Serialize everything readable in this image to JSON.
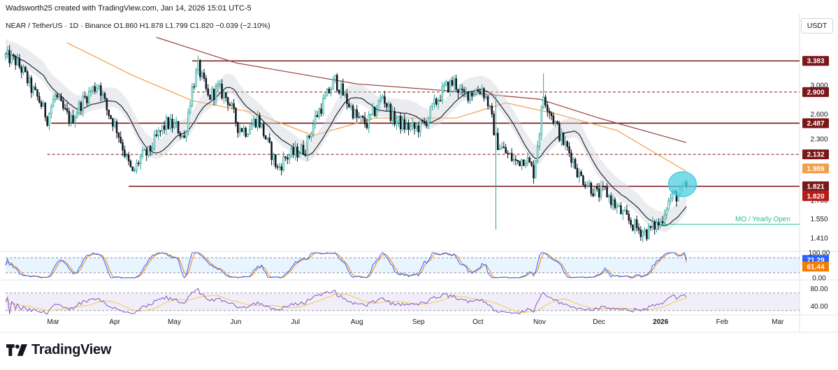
{
  "header": {
    "attribution": "Wadsworth25 created with TradingView.com, Jan 14, 2026 15:01 UTC-5",
    "symbol_line": "NEAR / TetherUS · 1D · Binance  O1.860  H1.878  L1.799  C1.820  −0.039 (−2.10%)"
  },
  "currency_label": "USDT",
  "branding": {
    "name": "TradingView",
    "logo_icon": "tradingview-logo-icon"
  },
  "colors": {
    "up": "#26a69a",
    "down": "#131722",
    "level": "#7b1619",
    "ma200": "#9c3c3c",
    "ma50": "#f0a04a",
    "sma20": "#131722",
    "band_fill": "#d1d4dc",
    "highlight": "#4dd0e1",
    "annotation": "#26c08a",
    "stoch_k": "#2962ff",
    "stoch_d": "#f57c00",
    "rsi": "#7e57c2",
    "rsi_ma": "#f0c850",
    "price_label": "#7b1619",
    "current_label": "#b71c1c"
  },
  "chart_data": [
    {
      "type": "candlestick",
      "title": "NEAR / TetherUS · 1D · Binance",
      "ohlc": {
        "open": 1.86,
        "high": 1.878,
        "low": 1.799,
        "close": 1.82,
        "change": -0.039,
        "change_pct": -2.1
      },
      "x_ticks": [
        "Mar",
        "Apr",
        "May",
        "Jun",
        "Jul",
        "Aug",
        "Sep",
        "Oct",
        "Nov",
        "Dec",
        "2026",
        "Feb",
        "Mar"
      ],
      "x_range": [
        "2025-02-05",
        "2026-03-12"
      ],
      "y_scale": "log",
      "y_range": [
        1.33,
        3.9
      ],
      "y_ticks": [
        3.0,
        2.6,
        2.3,
        1.7,
        1.55,
        1.41
      ],
      "grid": false,
      "series_close": [
        [
          "2025-02-05",
          3.46
        ],
        [
          "2025-02-10",
          3.38
        ],
        [
          "2025-02-14",
          3.2
        ],
        [
          "2025-02-18",
          2.95
        ],
        [
          "2025-02-22",
          2.78
        ],
        [
          "2025-02-26",
          2.55
        ],
        [
          "2025-03-02",
          2.85
        ],
        [
          "2025-03-06",
          2.65
        ],
        [
          "2025-03-10",
          2.52
        ],
        [
          "2025-03-15",
          2.74
        ],
        [
          "2025-03-20",
          2.92
        ],
        [
          "2025-03-24",
          3.02
        ],
        [
          "2025-03-28",
          2.66
        ],
        [
          "2025-04-02",
          2.42
        ],
        [
          "2025-04-07",
          2.08
        ],
        [
          "2025-04-10",
          1.93
        ],
        [
          "2025-04-14",
          2.1
        ],
        [
          "2025-04-18",
          2.15
        ],
        [
          "2025-04-23",
          2.35
        ],
        [
          "2025-04-27",
          2.48
        ],
        [
          "2025-05-02",
          2.45
        ],
        [
          "2025-05-06",
          2.3
        ],
        [
          "2025-05-10",
          2.95
        ],
        [
          "2025-05-13",
          3.28
        ],
        [
          "2025-05-18",
          2.82
        ],
        [
          "2025-05-23",
          2.95
        ],
        [
          "2025-05-28",
          2.8
        ],
        [
          "2025-06-02",
          2.45
        ],
        [
          "2025-06-06",
          2.4
        ],
        [
          "2025-06-12",
          2.55
        ],
        [
          "2025-06-17",
          2.25
        ],
        [
          "2025-06-22",
          1.98
        ],
        [
          "2025-06-26",
          2.1
        ],
        [
          "2025-07-01",
          2.15
        ],
        [
          "2025-07-06",
          2.2
        ],
        [
          "2025-07-11",
          2.55
        ],
        [
          "2025-07-16",
          2.8
        ],
        [
          "2025-07-21",
          3.08
        ],
        [
          "2025-07-26",
          2.82
        ],
        [
          "2025-08-01",
          2.55
        ],
        [
          "2025-08-06",
          2.48
        ],
        [
          "2025-08-11",
          2.68
        ],
        [
          "2025-08-14",
          2.85
        ],
        [
          "2025-08-19",
          2.55
        ],
        [
          "2025-08-25",
          2.45
        ],
        [
          "2025-08-30",
          2.42
        ],
        [
          "2025-09-04",
          2.48
        ],
        [
          "2025-09-09",
          2.72
        ],
        [
          "2025-09-14",
          2.95
        ],
        [
          "2025-09-19",
          3.05
        ],
        [
          "2025-09-23",
          2.85
        ],
        [
          "2025-09-28",
          2.9
        ],
        [
          "2025-10-03",
          2.95
        ],
        [
          "2025-10-06",
          2.75
        ],
        [
          "2025-10-10",
          2.3
        ],
        [
          "2025-10-11",
          2.25
        ],
        [
          "2025-10-15",
          2.15
        ],
        [
          "2025-10-20",
          2.05
        ],
        [
          "2025-10-25",
          2.1
        ],
        [
          "2025-10-29",
          1.95
        ],
        [
          "2025-11-01",
          2.4
        ],
        [
          "2025-11-03",
          2.85
        ],
        [
          "2025-11-07",
          2.6
        ],
        [
          "2025-11-12",
          2.3
        ],
        [
          "2025-11-17",
          2.12
        ],
        [
          "2025-11-21",
          1.92
        ],
        [
          "2025-11-25",
          1.85
        ],
        [
          "2025-11-30",
          1.75
        ],
        [
          "2025-12-04",
          1.78
        ],
        [
          "2025-12-08",
          1.68
        ],
        [
          "2025-12-12",
          1.6
        ],
        [
          "2025-12-17",
          1.52
        ],
        [
          "2025-12-21",
          1.47
        ],
        [
          "2025-12-25",
          1.45
        ],
        [
          "2025-12-29",
          1.5
        ],
        [
          "2026-01-01",
          1.52
        ],
        [
          "2026-01-04",
          1.66
        ],
        [
          "2026-01-07",
          1.74
        ],
        [
          "2026-01-10",
          1.74
        ],
        [
          "2026-01-14",
          1.82
        ]
      ],
      "moving_averages": [
        {
          "kind": "200-day moving average",
          "points": [
            [
              "2025-04-22",
              3.8
            ],
            [
              "2025-06-01",
              3.35
            ],
            [
              "2025-08-01",
              3.02
            ],
            [
              "2025-09-15",
              2.92
            ],
            [
              "2025-11-01",
              2.8
            ],
            [
              "2025-12-01",
              2.55
            ],
            [
              "2026-01-14",
              2.26
            ]
          ]
        },
        {
          "kind": "50-day moving average",
          "points": [
            [
              "2025-03-08",
              3.7
            ],
            [
              "2025-04-10",
              3.15
            ],
            [
              "2025-05-10",
              2.78
            ],
            [
              "2025-06-10",
              2.62
            ],
            [
              "2025-07-10",
              2.34
            ],
            [
              "2025-08-10",
              2.55
            ],
            [
              "2025-09-20",
              2.55
            ],
            [
              "2025-10-15",
              2.75
            ],
            [
              "2025-11-10",
              2.6
            ],
            [
              "2025-12-10",
              2.4
            ],
            [
              "2026-01-14",
              1.96
            ]
          ]
        }
      ],
      "horizontal_levels": [
        {
          "value": 3.383,
          "style": "solid",
          "from": "2025-05-10"
        },
        {
          "value": 2.9,
          "style": "dashed",
          "from": "2025-05-10"
        },
        {
          "value": 2.487,
          "style": "solid",
          "from": "2025-02-28"
        },
        {
          "value": 2.132,
          "style": "dashed",
          "from": "2025-02-26"
        },
        {
          "value": 1.821,
          "style": "solid",
          "from": "2025-04-08"
        }
      ],
      "price_labels": [
        {
          "text": "3.383",
          "value": 3.383,
          "kind": "level"
        },
        {
          "text": "2.900",
          "value": 2.9,
          "kind": "level"
        },
        {
          "text": "2.487",
          "value": 2.487,
          "kind": "level"
        },
        {
          "text": "2.132",
          "value": 2.132,
          "kind": "level"
        },
        {
          "text": "1.989",
          "value": 1.989,
          "kind": "ma"
        },
        {
          "text": "1.821",
          "value": 1.821,
          "kind": "level"
        },
        {
          "text": "1.820",
          "value": 1.82,
          "kind": "current"
        }
      ],
      "annotations": [
        {
          "text": "MO / Yearly Open",
          "value": 1.51,
          "from": "2026-01-01"
        }
      ],
      "highlight_circle": {
        "date": "2026-01-12",
        "value": 1.84
      }
    },
    {
      "type": "line",
      "indicator": "Stochastic RSI",
      "y_range": [
        0,
        100
      ],
      "y_ticks": [
        100.0,
        0.0
      ],
      "bands": [
        80,
        20
      ],
      "last_values": {
        "k": 71.29,
        "d": 61.44
      },
      "value_labels": [
        "71.29",
        "61.44"
      ]
    },
    {
      "type": "line",
      "indicator": "RSI",
      "y_range": [
        25,
        95
      ],
      "y_ticks": [
        80.0,
        40.0
      ],
      "bands": [
        70,
        30
      ],
      "last_value": 60
    }
  ]
}
